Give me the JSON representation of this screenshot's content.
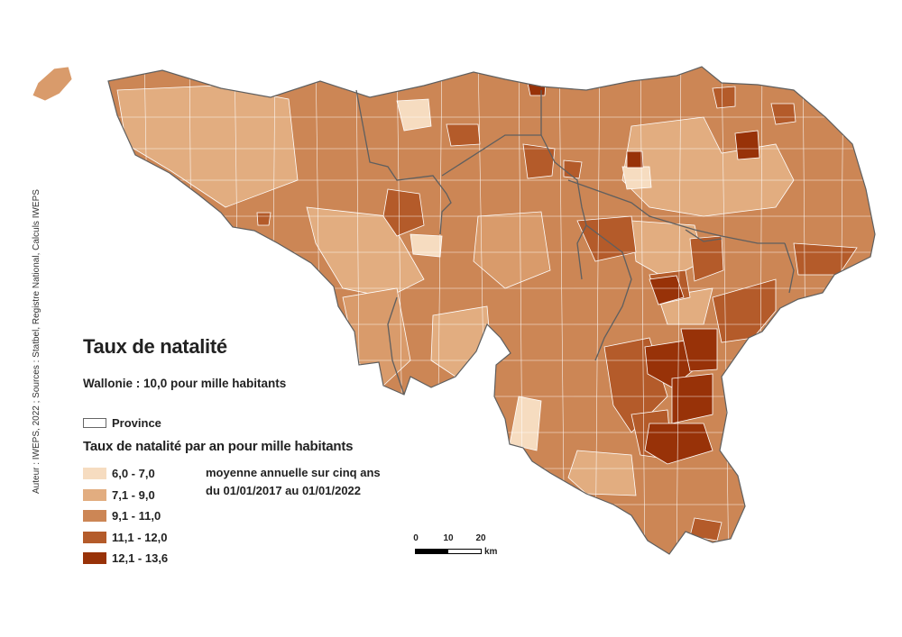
{
  "title": "Taux de natalité",
  "subtitle": "Wallonie : 10,0 pour mille habitants",
  "province_legend_label": "Province",
  "legend_title": "Taux de natalité par an pour mille habitants",
  "legend": [
    {
      "label": "6,0 - 7,0",
      "color": "#f6dcc0"
    },
    {
      "label": "7,1 - 9,0",
      "color": "#e2ad80"
    },
    {
      "label": "9,1 - 11,0",
      "color": "#cc8655"
    },
    {
      "label": "11,1 - 12,0",
      "color": "#b45b2a"
    },
    {
      "label": "12,1 - 13,6",
      "color": "#983208"
    }
  ],
  "note_line1": "moyenne annuelle sur cinq ans",
  "note_line2": "du 01/01/2017 au 01/01/2022",
  "credits": "Auteur : IWEPS, 2022 ; Sources : Statbel, Registre National, Calculs IWEPS",
  "scale": {
    "ticks": [
      "0",
      "10",
      "20"
    ],
    "unit": "km"
  },
  "colors": {
    "province_border": "#5f5f5f",
    "commune_border": "#ffffff"
  }
}
